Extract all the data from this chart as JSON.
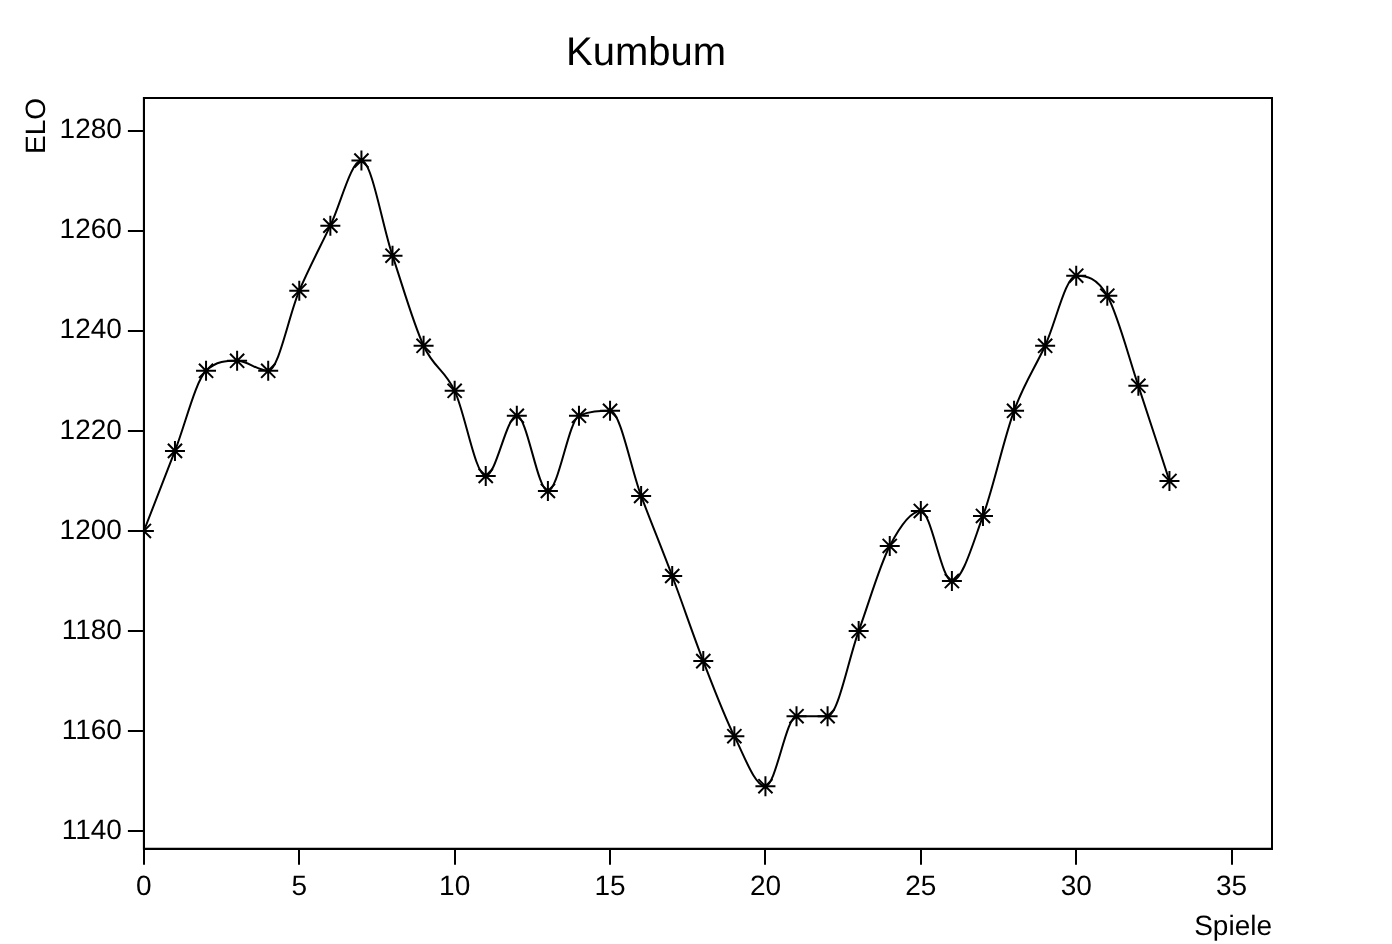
{
  "chart_data": {
    "type": "line",
    "title": "Kumbum",
    "xlabel": "Spiele",
    "ylabel": "ELO",
    "x": [
      0,
      1,
      2,
      3,
      4,
      5,
      6,
      7,
      8,
      9,
      10,
      11,
      12,
      13,
      14,
      15,
      16,
      17,
      18,
      19,
      20,
      21,
      22,
      23,
      24,
      25,
      26,
      27,
      28,
      29,
      30,
      31,
      32,
      33
    ],
    "series": [
      {
        "color": "#000000",
        "values": [
          1200,
          1216,
          1232,
          1234,
          1232,
          1248,
          1261,
          1274,
          1255,
          1237,
          1228,
          1211,
          1223,
          1208,
          1223,
          1224,
          1207,
          1191,
          1174,
          1159,
          1149,
          1163,
          1163,
          1180,
          1197,
          1204,
          1190,
          1203,
          1224,
          1237,
          1251,
          1247,
          1229,
          1210
        ]
      }
    ],
    "xlim": [
      0,
      36.3
    ],
    "xticks": [
      0,
      5,
      10,
      15,
      20,
      25,
      30,
      35
    ],
    "ylim": [
      1136.5,
      1286.5
    ],
    "yticks": [
      1140,
      1160,
      1180,
      1200,
      1220,
      1240,
      1260,
      1280
    ],
    "marker": "cross",
    "line_style": "solid",
    "grid": false,
    "legend": false
  }
}
